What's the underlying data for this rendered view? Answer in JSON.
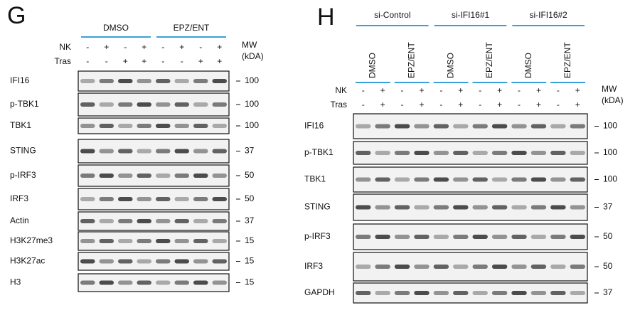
{
  "panels": [
    {
      "label": "G",
      "groups": [
        "DMSO",
        "EPZ/ENT"
      ],
      "treatments": [
        {
          "name": "NK",
          "signs": [
            "-",
            "+",
            "-",
            "+",
            "-",
            "+",
            "-",
            "+"
          ]
        },
        {
          "name": "Tras",
          "signs": [
            "-",
            "-",
            "+",
            "+",
            "-",
            "-",
            "+",
            "+"
          ]
        }
      ],
      "mw_header": [
        "MW",
        "(kDA)"
      ],
      "blots": [
        {
          "name": "IFI16",
          "mw": "100"
        },
        {
          "name": "p-TBK1",
          "mw": "100"
        },
        {
          "name": "TBK1",
          "mw": "100"
        },
        {
          "name": "STING",
          "mw": "37"
        },
        {
          "name": "p-IRF3",
          "mw": "50"
        },
        {
          "name": "IRF3",
          "mw": "50"
        },
        {
          "name": "Actin",
          "mw": "37"
        },
        {
          "name": "H3K27me3",
          "mw": "15"
        },
        {
          "name": "H3K27ac",
          "mw": "15"
        },
        {
          "name": "H3",
          "mw": "15"
        }
      ]
    },
    {
      "label": "H",
      "groups": [
        "si-Control",
        "si-IFI16#1",
        "si-IFI16#2"
      ],
      "conditions": [
        "DMSO",
        "EPZ/ENT",
        "DMSO",
        "EPZ/ENT",
        "DMSO",
        "EPZ/ENT"
      ],
      "treatments": [
        {
          "name": "NK",
          "signs": [
            "-",
            "+",
            "-",
            "+",
            "-",
            "+",
            "-",
            "+",
            "-",
            "+",
            "-",
            "+"
          ]
        },
        {
          "name": "Tras",
          "signs": [
            "-",
            "+",
            "-",
            "+",
            "-",
            "+",
            "-",
            "+",
            "-",
            "+",
            "-",
            "+"
          ]
        }
      ],
      "mw_header": [
        "MW",
        "(kDA)"
      ],
      "blots": [
        {
          "name": "IFI16",
          "mw": "100"
        },
        {
          "name": "p-TBK1",
          "mw": "100"
        },
        {
          "name": "TBK1",
          "mw": "100"
        },
        {
          "name": "STING",
          "mw": "37"
        },
        {
          "name": "p-IRF3",
          "mw": "50"
        },
        {
          "name": "IRF3",
          "mw": "50"
        },
        {
          "name": "GAPDH",
          "mw": "37"
        }
      ]
    }
  ]
}
